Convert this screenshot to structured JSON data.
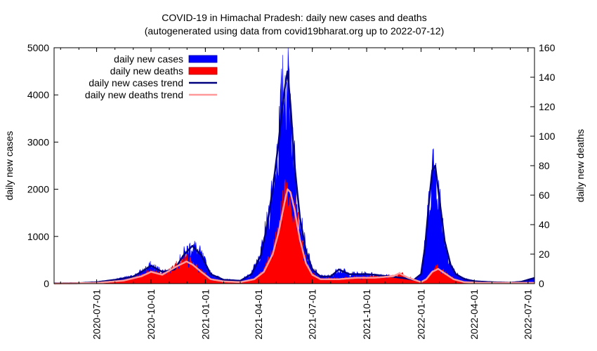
{
  "chart_data": {
    "type": "bar",
    "title": "COVID-19 in Himachal Pradesh: daily new cases and deaths",
    "subtitle": "(autogenerated using data from covid19bharat.org up to 2022-07-12)",
    "ylabel": "daily new cases",
    "y2label": "daily new deaths",
    "xlabel": "",
    "ylim": [
      0,
      5000
    ],
    "y2lim": [
      0,
      160
    ],
    "yticks": [
      "0",
      "1000",
      "2000",
      "3000",
      "4000",
      "5000"
    ],
    "y2ticks": [
      "0",
      "20",
      "40",
      "60",
      "80",
      "100",
      "120",
      "140",
      "160"
    ],
    "xticks": [
      "2020-07-01",
      "2020-10-01",
      "2021-01-01",
      "2021-04-01",
      "2021-07-01",
      "2021-10-01",
      "2022-01-01",
      "2022-04-01",
      "2022-07-01"
    ],
    "xrange": [
      "2020-04-20",
      "2022-07-12"
    ],
    "legend_position": "top-left",
    "legend": [
      "daily new cases",
      "daily new deaths",
      "daily new cases trend",
      "daily new deaths trend"
    ],
    "colors": {
      "cases": "#0000ff",
      "deaths": "#ff0000",
      "cases_trend": "#00007f",
      "deaths_trend": "#ff9999"
    },
    "series": [
      {
        "name": "daily new cases trend",
        "axis": "left",
        "x": [
          "2020-04-20",
          "2020-06-01",
          "2020-07-01",
          "2020-08-01",
          "2020-09-01",
          "2020-09-15",
          "2020-10-01",
          "2020-10-20",
          "2020-11-10",
          "2020-11-25",
          "2020-12-10",
          "2020-12-25",
          "2021-01-10",
          "2021-02-01",
          "2021-03-01",
          "2021-03-20",
          "2021-04-05",
          "2021-04-15",
          "2021-04-25",
          "2021-05-05",
          "2021-05-10",
          "2021-05-15",
          "2021-05-20",
          "2021-05-25",
          "2021-06-01",
          "2021-06-10",
          "2021-06-20",
          "2021-07-01",
          "2021-07-15",
          "2021-08-01",
          "2021-08-15",
          "2021-09-01",
          "2021-10-01",
          "2021-10-20",
          "2021-11-10",
          "2021-12-01",
          "2021-12-20",
          "2022-01-01",
          "2022-01-08",
          "2022-01-15",
          "2022-01-20",
          "2022-01-25",
          "2022-02-01",
          "2022-02-10",
          "2022-02-20",
          "2022-03-01",
          "2022-03-15",
          "2022-04-01",
          "2022-05-01",
          "2022-06-01",
          "2022-06-20",
          "2022-07-12"
        ],
        "values": [
          5,
          10,
          30,
          80,
          150,
          250,
          380,
          250,
          300,
          600,
          800,
          600,
          200,
          80,
          60,
          200,
          600,
          1200,
          2000,
          3000,
          3600,
          4100,
          4500,
          3800,
          2500,
          1400,
          700,
          300,
          150,
          150,
          300,
          200,
          200,
          180,
          150,
          120,
          80,
          200,
          800,
          1800,
          2400,
          2500,
          1800,
          900,
          400,
          200,
          100,
          50,
          30,
          20,
          40,
          120
        ]
      },
      {
        "name": "daily new deaths trend",
        "axis": "right",
        "x": [
          "2020-04-20",
          "2020-07-01",
          "2020-08-15",
          "2020-09-15",
          "2020-10-01",
          "2020-10-20",
          "2020-11-15",
          "2020-11-30",
          "2020-12-10",
          "2020-12-25",
          "2021-01-10",
          "2021-02-01",
          "2021-03-01",
          "2021-03-25",
          "2021-04-10",
          "2021-04-25",
          "2021-05-05",
          "2021-05-15",
          "2021-05-20",
          "2021-05-25",
          "2021-06-01",
          "2021-06-10",
          "2021-06-20",
          "2021-07-01",
          "2021-07-15",
          "2021-08-15",
          "2021-09-15",
          "2021-10-15",
          "2021-11-15",
          "2021-11-25",
          "2021-12-10",
          "2022-01-01",
          "2022-01-10",
          "2022-01-20",
          "2022-01-30",
          "2022-02-10",
          "2022-02-25",
          "2022-03-15",
          "2022-04-15",
          "2022-07-12"
        ],
        "values": [
          0,
          0.5,
          2,
          5,
          8,
          6,
          12,
          15,
          13,
          8,
          3,
          1.5,
          1,
          3,
          8,
          20,
          35,
          55,
          64,
          62,
          50,
          30,
          14,
          6,
          3,
          3,
          4,
          4,
          5,
          7,
          4,
          1,
          3,
          8,
          10,
          7,
          3,
          1,
          0.5,
          0.5
        ]
      }
    ]
  }
}
